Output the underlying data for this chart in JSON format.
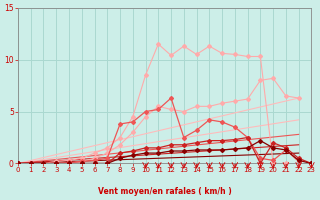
{
  "bg_color": "#cceee8",
  "grid_color": "#aad8d0",
  "xlabel": "Vent moyen/en rafales ( km/h )",
  "xlabel_color": "#cc0000",
  "tick_color": "#cc0000",
  "xlim": [
    0,
    23
  ],
  "ylim": [
    0,
    15
  ],
  "yticks": [
    0,
    5,
    10,
    15
  ],
  "xticks": [
    0,
    1,
    2,
    3,
    4,
    5,
    6,
    7,
    8,
    9,
    10,
    11,
    12,
    13,
    14,
    15,
    16,
    17,
    18,
    19,
    20,
    21,
    22,
    23
  ],
  "lines": [
    {
      "x": [
        0,
        1,
        2,
        3,
        4,
        5,
        6,
        7,
        8,
        9,
        10,
        11,
        12,
        13,
        14,
        15,
        16,
        17,
        18,
        19,
        20,
        21
      ],
      "y": [
        0,
        0,
        0,
        0.2,
        0.3,
        0.5,
        1.0,
        1.5,
        2.5,
        4.5,
        8.5,
        11.5,
        10.4,
        11.3,
        10.5,
        11.3,
        10.6,
        10.5,
        10.3,
        10.3,
        0,
        0
      ],
      "color": "#ffaaaa",
      "lw": 0.8,
      "marker": "D",
      "ms": 2.0,
      "ls": "-"
    },
    {
      "x": [
        0,
        1,
        2,
        3,
        4,
        5,
        6,
        7,
        8,
        9,
        10,
        11,
        12,
        13,
        14,
        15,
        16,
        17,
        18,
        19,
        20,
        21,
        22
      ],
      "y": [
        0,
        0,
        0,
        0,
        0,
        0.2,
        0.5,
        1.0,
        1.8,
        3.0,
        4.5,
        5.5,
        5.2,
        5.0,
        5.5,
        5.5,
        5.8,
        6.0,
        6.2,
        8.0,
        8.2,
        6.5,
        6.3
      ],
      "color": "#ffaaaa",
      "lw": 0.8,
      "marker": "D",
      "ms": 2.0,
      "ls": "-"
    },
    {
      "x": [
        0,
        1,
        2,
        3,
        4,
        5,
        6,
        7,
        8,
        9,
        10,
        11,
        12,
        13,
        14,
        15,
        16,
        17,
        18,
        19,
        20,
        21,
        22
      ],
      "y": [
        0,
        0,
        0,
        0,
        0.1,
        0.2,
        0.3,
        0.5,
        3.8,
        4.0,
        5.0,
        5.2,
        6.3,
        2.5,
        3.2,
        4.2,
        4.0,
        3.5,
        2.5,
        0.5,
        0.3,
        1.3,
        0.2
      ],
      "color": "#ee5555",
      "lw": 0.9,
      "marker": "D",
      "ms": 2.0,
      "ls": "-"
    },
    {
      "x": [
        0,
        1,
        2,
        3,
        4,
        5,
        6,
        7,
        8,
        9,
        10,
        11,
        12,
        13,
        14,
        15,
        16,
        17,
        18,
        19,
        20,
        21,
        22,
        23
      ],
      "y": [
        0,
        0,
        0,
        0,
        0,
        0,
        0,
        0,
        1.0,
        1.2,
        1.5,
        1.5,
        1.8,
        1.8,
        2.0,
        2.2,
        2.2,
        2.3,
        2.5,
        0,
        2.0,
        1.5,
        0.5,
        0
      ],
      "color": "#cc2222",
      "lw": 0.9,
      "marker": "D",
      "ms": 2.0,
      "ls": "-"
    },
    {
      "x": [
        0,
        1,
        2,
        3,
        4,
        5,
        6,
        7,
        8,
        9,
        10,
        11,
        12,
        13,
        14,
        15,
        16,
        17,
        18,
        19,
        20,
        21,
        22,
        23
      ],
      "y": [
        0,
        0,
        0,
        0,
        0,
        0,
        0,
        0,
        0.5,
        0.8,
        1.0,
        1.0,
        1.2,
        1.2,
        1.3,
        1.3,
        1.3,
        1.4,
        1.5,
        2.2,
        1.5,
        1.3,
        0.3,
        0
      ],
      "color": "#880000",
      "lw": 0.9,
      "marker": "D",
      "ms": 2.0,
      "ls": "-"
    },
    {
      "x": [
        0,
        22
      ],
      "y": [
        0,
        6.3
      ],
      "color": "#ffbbbb",
      "lw": 0.8,
      "marker": null,
      "ms": 0,
      "ls": "-"
    },
    {
      "x": [
        0,
        22
      ],
      "y": [
        0,
        4.2
      ],
      "color": "#ffbbbb",
      "lw": 0.8,
      "marker": null,
      "ms": 0,
      "ls": "-"
    },
    {
      "x": [
        0,
        22
      ],
      "y": [
        0,
        2.8
      ],
      "color": "#ee5555",
      "lw": 0.8,
      "marker": null,
      "ms": 0,
      "ls": "-"
    },
    {
      "x": [
        0,
        22
      ],
      "y": [
        0,
        1.8
      ],
      "color": "#cc2222",
      "lw": 0.8,
      "marker": null,
      "ms": 0,
      "ls": "-"
    },
    {
      "x": [
        0,
        22
      ],
      "y": [
        0,
        1.0
      ],
      "color": "#880000",
      "lw": 0.8,
      "marker": null,
      "ms": 0,
      "ls": "-"
    }
  ],
  "tick_arrows_x": [
    10,
    11,
    12,
    13,
    14,
    15,
    16,
    17,
    18,
    19,
    20,
    21,
    22,
    23
  ]
}
